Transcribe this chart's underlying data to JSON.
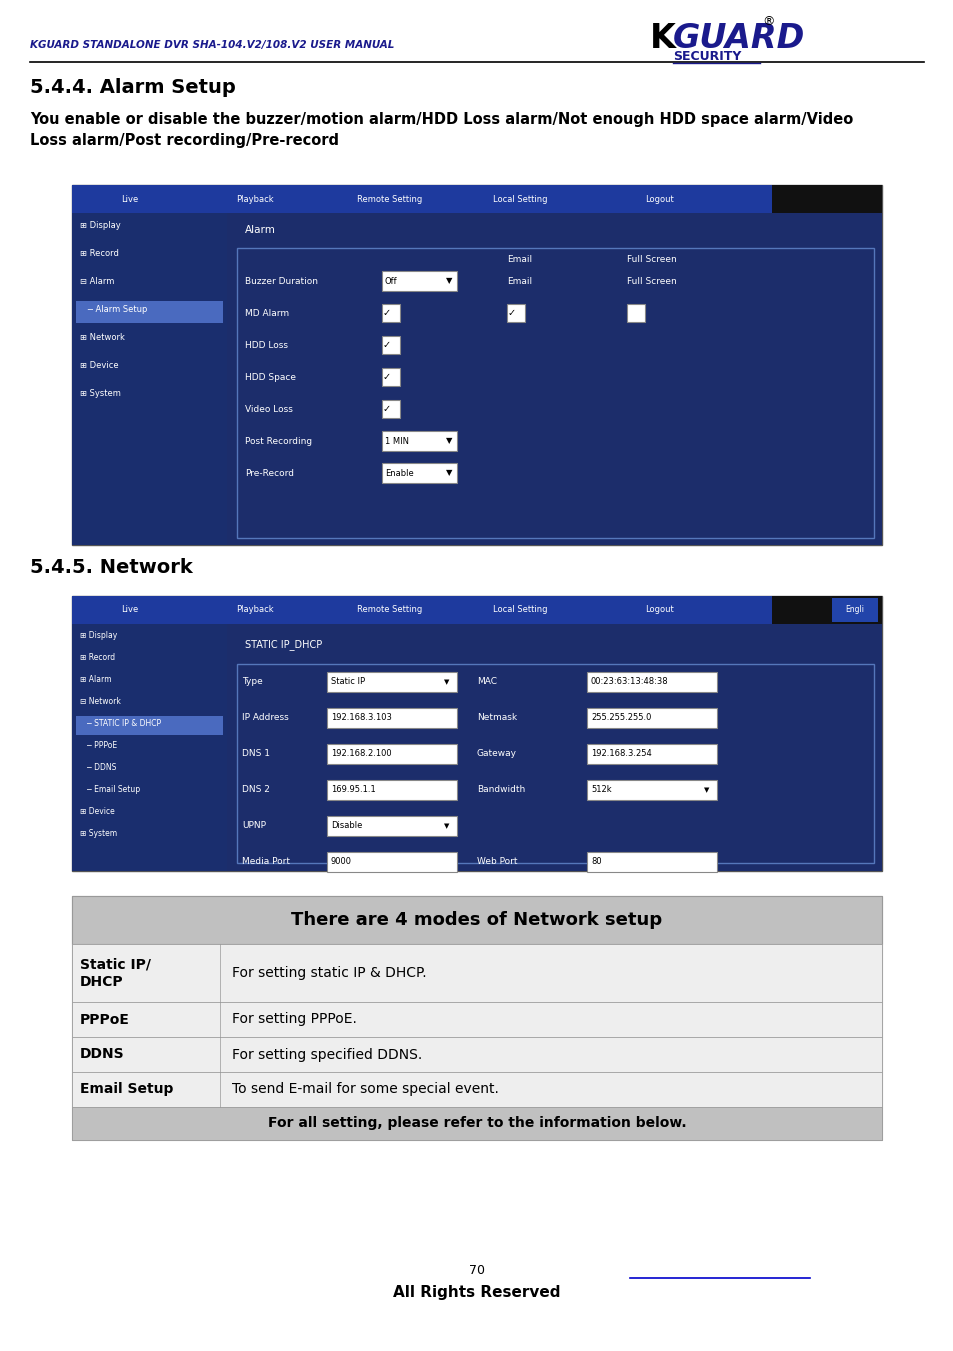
{
  "page_width": 9.54,
  "page_height": 13.51,
  "dpi": 100,
  "bg_color": "#ffffff",
  "header_line_color": "#000000",
  "header_text": "KGUARD STANDALONE DVR SHA-104.V2/108.V2 USER MANUAL",
  "header_text_color": "#1a1a8c",
  "logo_k_color": "#000000",
  "logo_guard_color": "#1a1a8c",
  "logo_security_color": "#1a1a8c",
  "section1_title": "5.4.4. Alarm Setup",
  "body_text1": "You enable or disable the buzzer/motion alarm/HDD Loss alarm/Not enough HDD space alarm/Video\nLoss alarm/Post recording/Pre-record",
  "section2_title": "5.4.5. Network",
  "dvr_bg": "#1c2d6b",
  "dvr_tab_bg": "#1e3a9e",
  "dvr_sidebar_bg": "#1a2e6e",
  "dvr_selected_bg": "#4a6abf",
  "dvr_content_bg": "#1c2d6b",
  "dvr_field_bg": "#ffffff",
  "dvr_border_color": "#5577bb",
  "table_header_bg": "#c0c0c0",
  "table_row_bg": "#eeeeee",
  "table_border": "#999999",
  "table_header_text": "There are 4 modes of Network setup",
  "table_rows": [
    [
      "Static IP/\nDHCP",
      "For setting static IP & DHCP."
    ],
    [
      "PPPoE",
      "For setting PPPoE."
    ],
    [
      "DDNS",
      "For setting specified DDNS."
    ],
    [
      "Email Setup",
      "To send E-mail for some special event."
    ]
  ],
  "table_footer": "For all setting, please refer to the information below.",
  "footer_num": "70",
  "footer_text": "All Rights Reserved",
  "footer_line_color": "#0000cc",
  "sidebar1_items": [
    "⊞ Display",
    "⊞ Record",
    "⊟ Alarm",
    "   ─ Alarm Setup",
    "⊞ Network",
    "⊞ Device",
    "⊞ System"
  ],
  "sidebar1_selected": 3,
  "sidebar2_items": [
    "⊞ Display",
    "⊞ Record",
    "⊞ Alarm",
    "⊟ Network",
    "   ─ STATIC IP & DHCP",
    "   ─ PPPoE",
    "   ─ DDNS",
    "   ─ Email Setup",
    "⊞ Device",
    "⊞ System"
  ],
  "sidebar2_selected": 4,
  "tabs": [
    "Live",
    "Playback",
    "Remote Setting",
    "Local Setting",
    "Logout"
  ],
  "alarm_rows": [
    {
      "label": "Buzzer Duration",
      "value": "Off",
      "dropdown": true,
      "check": false,
      "email_check": false,
      "fs_check": false
    },
    {
      "label": "MD Alarm",
      "value": "",
      "dropdown": false,
      "check": true,
      "email_check": true,
      "fs_check": true
    },
    {
      "label": "",
      "value": "",
      "dropdown": false,
      "check": false,
      "email_check": false,
      "fs_check": false
    },
    {
      "label": "HDD Loss",
      "value": "",
      "dropdown": false,
      "check": true,
      "email_check": false,
      "fs_check": false
    },
    {
      "label": "HDD Space",
      "value": "",
      "dropdown": false,
      "check": true,
      "email_check": false,
      "fs_check": false
    },
    {
      "label": "Video Loss",
      "value": "",
      "dropdown": false,
      "check": true,
      "email_check": false,
      "fs_check": false
    },
    {
      "label": "Post Recording",
      "value": "1 MIN",
      "dropdown": true,
      "check": false,
      "email_check": false,
      "fs_check": false
    },
    {
      "label": "Pre-Record",
      "value": "Enable",
      "dropdown": true,
      "check": false,
      "email_check": false,
      "fs_check": false
    }
  ],
  "net_fields": [
    [
      "Type",
      "Static IP",
      true,
      "MAC",
      "00:23:63:13:48:38",
      false
    ],
    [
      "IP Address",
      "192.168.3.103",
      false,
      "Netmask",
      "255.255.255.0",
      false
    ],
    [
      "DNS 1",
      "192.168.2.100",
      false,
      "Gateway",
      "192.168.3.254",
      false
    ],
    [
      "DNS 2",
      "169.95.1.1",
      false,
      "Bandwidth",
      "512k",
      true
    ],
    [
      "UPNP",
      "Disable",
      true,
      "",
      "",
      false
    ],
    [
      "Media Port",
      "9000",
      false,
      "Web Port",
      "80",
      false
    ]
  ]
}
